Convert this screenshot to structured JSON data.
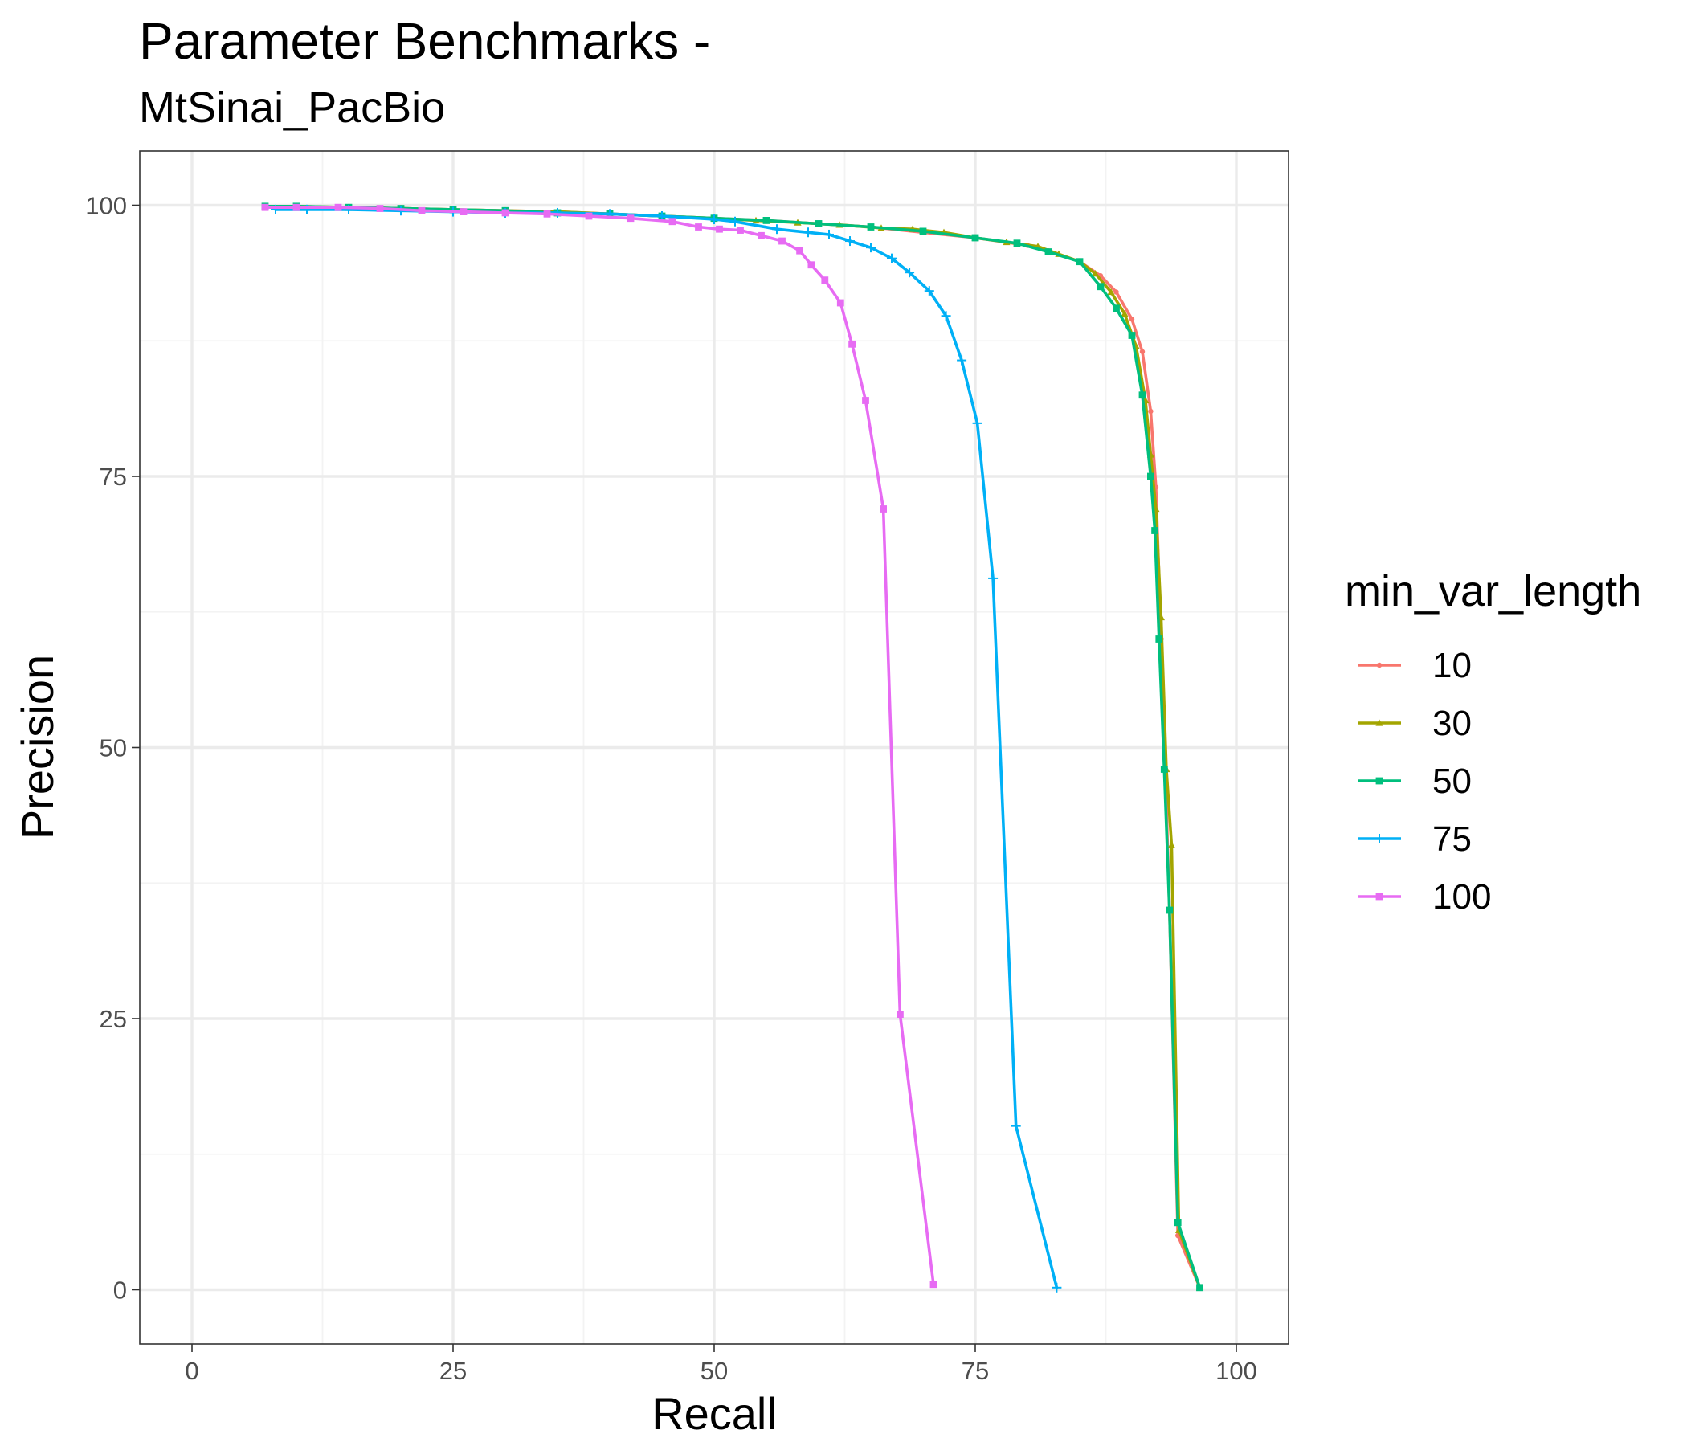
{
  "colors": {
    "10": "#F8766D",
    "30": "#A3A500",
    "50": "#00BF7D",
    "75": "#00B0F6",
    "100": "#E76BF3",
    "grid_major": "#EBEBEB",
    "grid_minor": "#F3F3F3",
    "panel_border": "#333333",
    "tick_text": "#4D4D4D"
  },
  "chart_data": {
    "type": "line",
    "title": "Parameter Benchmarks -",
    "subtitle": "MtSinai_PacBio",
    "xlabel": "Recall",
    "ylabel": "Precision",
    "xlim": [
      -5,
      105
    ],
    "ylim": [
      -5,
      105
    ],
    "xticks": [
      0,
      25,
      50,
      75,
      100
    ],
    "yticks": [
      0,
      25,
      50,
      75,
      100
    ],
    "grid": true,
    "legend": {
      "title": "min_var_length",
      "position": "right"
    },
    "series": [
      {
        "name": "10",
        "marker": "dot",
        "color_key": "10",
        "x": [
          7,
          10,
          15,
          20,
          25,
          30,
          35,
          40,
          45,
          50,
          55,
          60,
          65,
          70,
          75,
          80,
          82,
          85,
          87,
          88.5,
          90,
          91,
          91.8,
          92.3,
          92.8,
          93.2,
          93.6,
          94.4,
          96.5
        ],
        "y": [
          99.8,
          99.8,
          99.8,
          99.7,
          99.6,
          99.5,
          99.4,
          99.2,
          99.0,
          98.8,
          98.6,
          98.3,
          98.0,
          97.5,
          97.0,
          96.3,
          95.8,
          94.8,
          93.5,
          92.0,
          89.5,
          86.5,
          81.0,
          74.0,
          60.0,
          48.0,
          35.0,
          5.0,
          0.2
        ]
      },
      {
        "name": "30",
        "marker": "triangle",
        "color_key": "30",
        "x": [
          7,
          10,
          15,
          20,
          25,
          30,
          35,
          40,
          45,
          50,
          54,
          58,
          62,
          66,
          69,
          72,
          75,
          78,
          81,
          83,
          85,
          86.5,
          88,
          89.3,
          90.4,
          91.3,
          91.8,
          92.3,
          92.8,
          93.3,
          93.8,
          94.5,
          96.5
        ],
        "y": [
          99.9,
          99.9,
          99.8,
          99.7,
          99.6,
          99.5,
          99.4,
          99.2,
          99.0,
          98.8,
          98.6,
          98.4,
          98.2,
          97.9,
          97.8,
          97.5,
          97.0,
          96.6,
          96.2,
          95.5,
          94.8,
          93.7,
          92.0,
          90.0,
          87.0,
          82.0,
          77.0,
          72.0,
          62.0,
          48.0,
          41.0,
          5.5,
          0.2
        ]
      },
      {
        "name": "50",
        "marker": "square",
        "color_key": "50",
        "x": [
          7,
          10,
          15,
          20,
          25,
          30,
          35,
          40,
          45,
          50,
          55,
          60,
          65,
          70,
          75,
          79,
          82,
          85,
          87,
          88.5,
          90,
          91,
          91.8,
          92.2,
          92.6,
          93.1,
          93.6,
          94.4,
          96.5
        ],
        "y": [
          99.9,
          99.9,
          99.8,
          99.7,
          99.6,
          99.5,
          99.3,
          99.2,
          99.0,
          98.8,
          98.6,
          98.3,
          98.0,
          97.6,
          97.0,
          96.5,
          95.7,
          94.8,
          92.5,
          90.5,
          88.0,
          82.5,
          75.0,
          70.0,
          60.0,
          48.0,
          35.0,
          6.2,
          0.2
        ]
      },
      {
        "name": "75",
        "marker": "plus",
        "color_key": "75",
        "x": [
          8,
          11,
          15,
          20,
          25,
          30,
          35,
          40,
          45,
          50,
          52,
          56,
          59,
          61,
          63,
          65,
          67,
          68.7,
          70.6,
          72.2,
          73.7,
          75.2,
          76.7,
          78.9,
          82.8
        ],
        "y": [
          99.6,
          99.6,
          99.6,
          99.5,
          99.4,
          99.3,
          99.3,
          99.2,
          99.0,
          98.7,
          98.5,
          97.8,
          97.5,
          97.3,
          96.7,
          96.1,
          95.1,
          93.8,
          92.1,
          89.8,
          85.7,
          79.9,
          65.6,
          15.1,
          0.2
        ]
      },
      {
        "name": "100",
        "marker": "square",
        "color_key": "100",
        "x": [
          7,
          10,
          14,
          18,
          22,
          26,
          30,
          34,
          38,
          42,
          46,
          48.5,
          50.5,
          52.5,
          54.5,
          56.5,
          58.2,
          59.3,
          60.6,
          62.1,
          63.2,
          64.5,
          66.2,
          67.8,
          71.0
        ],
        "y": [
          99.8,
          99.8,
          99.8,
          99.7,
          99.5,
          99.4,
          99.3,
          99.2,
          99.0,
          98.8,
          98.5,
          98.0,
          97.8,
          97.7,
          97.2,
          96.7,
          95.8,
          94.5,
          93.1,
          91.0,
          87.2,
          82.0,
          72.0,
          25.4,
          0.5
        ]
      }
    ]
  }
}
